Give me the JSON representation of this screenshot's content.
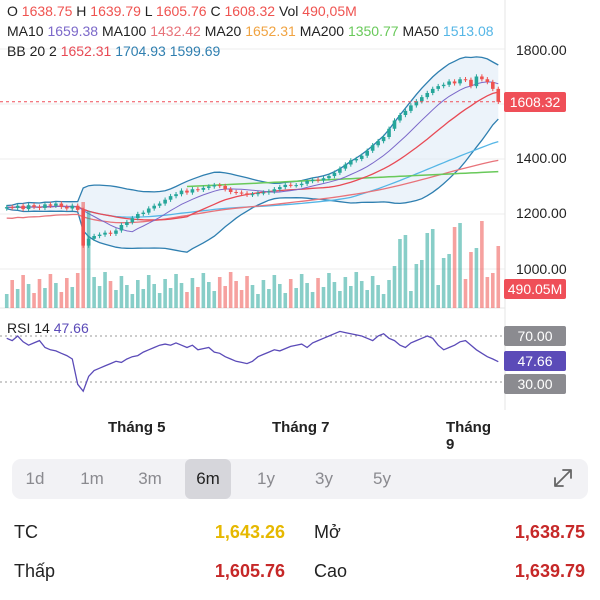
{
  "header": {
    "ohlc": [
      {
        "k": "O",
        "v": "1638.75"
      },
      {
        "k": "H",
        "v": "1639.79"
      },
      {
        "k": "L",
        "v": "1605.76"
      },
      {
        "k": "C",
        "v": "1608.32"
      },
      {
        "k": "Vol",
        "v": "490,05M"
      }
    ],
    "ma": [
      {
        "k": "MA10",
        "v": "1659.38",
        "color": "#7b68c9"
      },
      {
        "k": "MA100",
        "v": "1432.42",
        "color": "#e8737a"
      },
      {
        "k": "MA20",
        "v": "1652.31",
        "color": "#f0a341"
      },
      {
        "k": "MA200",
        "v": "1350.77",
        "color": "#69c95a"
      },
      {
        "k": "MA50",
        "v": "1513.08",
        "color": "#55b6e6"
      }
    ],
    "bb": {
      "k": "BB 20 2",
      "v1": "1652.31",
      "v2": "1704.93",
      "v3": "1599.69",
      "c1": "#e84a55",
      "c2": "#2f7fb0",
      "c3": "#2f7fb0"
    }
  },
  "price_badge": "1608.32",
  "volume_badge": "490.05M",
  "rsi": {
    "label": "RSI 14",
    "value": "47.66",
    "upper": "70.00",
    "lower": "30.00"
  },
  "y_ticks": [
    "1800.00",
    "1600.00",
    "1400.00",
    "1200.00",
    "1000.00"
  ],
  "x_ticks": [
    "Tháng 5",
    "Tháng 7",
    "Tháng 9"
  ],
  "tabs": [
    {
      "label": "1d",
      "active": false
    },
    {
      "label": "1m",
      "active": false
    },
    {
      "label": "3m",
      "active": false
    },
    {
      "label": "6m",
      "active": true
    },
    {
      "label": "1y",
      "active": false
    },
    {
      "label": "3y",
      "active": false
    },
    {
      "label": "5y",
      "active": false
    }
  ],
  "stats": {
    "tc_label": "TC",
    "tc_value": "1,643.26",
    "mo_label": "Mở",
    "mo_value": "1,638.75",
    "thap_label": "Thấp",
    "thap_value": "1,605.76",
    "cao_label": "Cao",
    "cao_value": "1,639.79"
  },
  "colors": {
    "up": "#26a69a",
    "down": "#ef5350",
    "tc": "#e6b800",
    "value_red": "#c62828",
    "rsi_line": "#5b4bb8",
    "bb": "#2f7fb0",
    "ma10": "#7b68c9",
    "ma100": "#e8737a",
    "ma20": "#f0a341",
    "ma200": "#69c95a",
    "ma50": "#55b6e6"
  },
  "chart_data": {
    "type": "line",
    "series": [
      {
        "name": "Close",
        "values": [
          1225,
          1222,
          1230,
          1218,
          1232,
          1226,
          1222,
          1235,
          1230,
          1238,
          1226,
          1220,
          1230,
          1215,
          1085,
          1110,
          1120,
          1125,
          1132,
          1128,
          1140,
          1160,
          1170,
          1185,
          1200,
          1205,
          1220,
          1230,
          1238,
          1252,
          1265,
          1272,
          1285,
          1278,
          1290,
          1288,
          1295,
          1300,
          1305,
          1302,
          1290,
          1280,
          1278,
          1275,
          1270,
          1272,
          1276,
          1278,
          1282,
          1290,
          1298,
          1306,
          1304,
          1305,
          1310,
          1320,
          1325,
          1322,
          1330,
          1338,
          1350,
          1365,
          1380,
          1395,
          1400,
          1412,
          1430,
          1450,
          1465,
          1480,
          1510,
          1540,
          1560,
          1575,
          1595,
          1610,
          1625,
          1640,
          1655,
          1665,
          1670,
          1682,
          1675,
          1690,
          1688,
          1665,
          1700,
          1690,
          1680,
          1655,
          1608
        ]
      },
      {
        "name": "RSI 14",
        "values": [
          68,
          66,
          70,
          65,
          62,
          64,
          66,
          60,
          58,
          57,
          55,
          53,
          50,
          28,
          22,
          35,
          40,
          42,
          44,
          46,
          48,
          47,
          50,
          52,
          53,
          56,
          58,
          60,
          62,
          63,
          62,
          64,
          62,
          60,
          62,
          58,
          59,
          60,
          56,
          55,
          52,
          50,
          48,
          47,
          46,
          48,
          52,
          54,
          56,
          58,
          57,
          59,
          61,
          62,
          63,
          60,
          64,
          66,
          68,
          70,
          72,
          74,
          73,
          72,
          71,
          70,
          68,
          66,
          70,
          72,
          68,
          66,
          62,
          60,
          64,
          66,
          68,
          70,
          68,
          62,
          58,
          60,
          62,
          65,
          66,
          62,
          58,
          55,
          52,
          50,
          47.66
        ]
      }
    ],
    "y_ticks": [
      1800,
      1600,
      1400,
      1200,
      1000
    ],
    "x_ticks": [
      "Tháng 5",
      "Tháng 7",
      "Tháng 9"
    ]
  }
}
